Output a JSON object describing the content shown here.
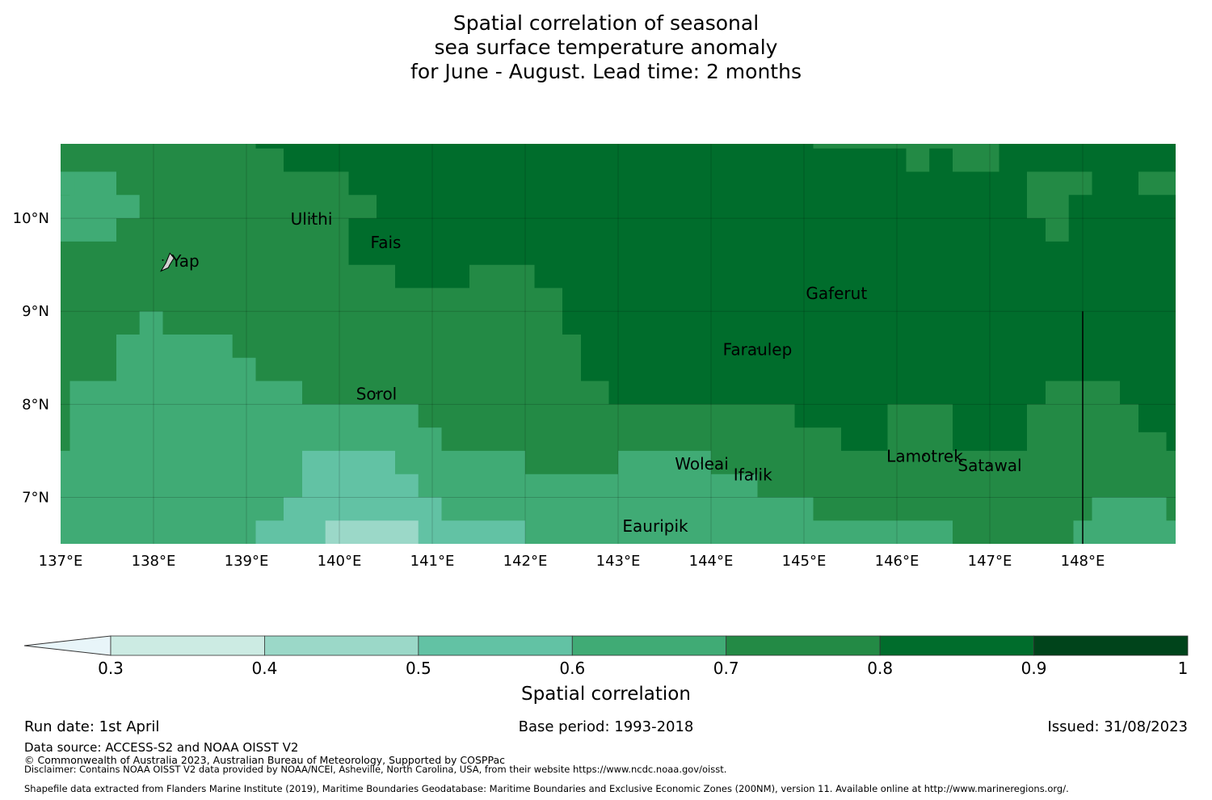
{
  "title": {
    "line1": "Spatial correlation of seasonal",
    "line2": "sea surface temperature anomaly",
    "line3": "for June - August. Lead time: 2 months"
  },
  "map": {
    "lon_range": [
      137,
      149
    ],
    "lat_range": [
      6.5,
      10.8
    ],
    "lon_ticks": [
      "137°E",
      "138°E",
      "139°E",
      "140°E",
      "141°E",
      "142°E",
      "143°E",
      "144°E",
      "145°E",
      "146°E",
      "147°E",
      "148°E"
    ],
    "lat_ticks": [
      "10°N",
      "9°N",
      "8°N",
      "7°N"
    ],
    "islands": [
      {
        "name": "Ulithi",
        "lon": 139.7,
        "lat": 10.0
      },
      {
        "name": "Fais",
        "lon": 140.5,
        "lat": 9.75
      },
      {
        "name": "Yap",
        "lon": 138.1,
        "lat": 9.55
      },
      {
        "name": "Gaferut",
        "lon": 145.35,
        "lat": 9.2
      },
      {
        "name": "Faraulep",
        "lon": 144.5,
        "lat": 8.6
      },
      {
        "name": "Sorol",
        "lon": 140.4,
        "lat": 8.12
      },
      {
        "name": "Woleai",
        "lon": 143.9,
        "lat": 7.37
      },
      {
        "name": "Ifalik",
        "lon": 144.45,
        "lat": 7.25
      },
      {
        "name": "Lamotrek",
        "lon": 146.3,
        "lat": 7.45
      },
      {
        "name": "Satawal",
        "lon": 147.0,
        "lat": 7.35
      },
      {
        "name": "Eauripik",
        "lon": 143.4,
        "lat": 6.7
      }
    ],
    "eez_line_lon": 148.0,
    "colors": {
      "c05_06": "#62c2a4",
      "c06_07": "#40ab75",
      "c07_08": "#238a45",
      "c08_09": "#006d2c",
      "c04_05": "#9bd8c8"
    }
  },
  "colorbar": {
    "label": "Spatial correlation",
    "ticks": [
      "0.3",
      "0.4",
      "0.5",
      "0.6",
      "0.7",
      "0.8",
      "0.9",
      "1"
    ],
    "colors": [
      "#ccebe3",
      "#9bd8c8",
      "#62c2a4",
      "#40ab75",
      "#238a45",
      "#006d2c",
      "#00441b"
    ],
    "extend_color": "#e8f5f9"
  },
  "footer": {
    "run_date": "Run date: 1st April",
    "base_period": "Base period: 1993-2018",
    "issued": "Issued: 31/08/2023",
    "data_source": "Data source: ACCESS-S2 and NOAA OISST V2",
    "copyright": "© Commonwealth of Australia 2023, Australian Bureau of Meteorology, Supported by COSPPac",
    "disclaimer": "Disclaimer: Contains NOAA OISST V2 data provided by NOAA/NCEI, Asheville, North Carolina, USA, from their website https://www.ncdc.noaa.gov/oisst.",
    "shapefile": "Shapefile data extracted from Flanders Marine Institute (2019), Maritime Boundaries Geodatabase: Maritime Boundaries and Exclusive Economic Zones (200NM), version 11. Available online at http://www.marineregions.org/."
  }
}
